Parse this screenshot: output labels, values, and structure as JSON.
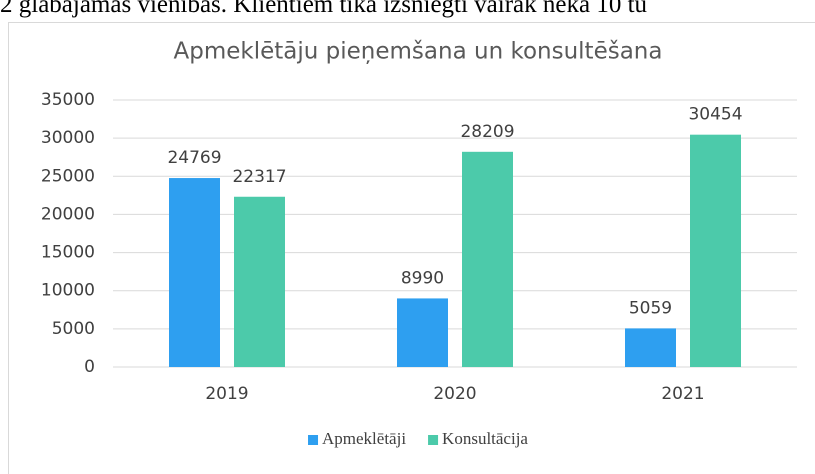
{
  "document_text": "2 glabājamās vienības. Klientiem tika izsniegti vairāk nekā 10 tū",
  "chart_data": {
    "type": "bar",
    "title": "Apmeklētāju pieņemšana un konsultēšana",
    "categories": [
      "2019",
      "2020",
      "2021"
    ],
    "series": [
      {
        "name": "Apmeklētāji",
        "color": "#2e9ff0",
        "values": [
          24769,
          8990,
          5059
        ]
      },
      {
        "name": "Konsultācija",
        "color": "#4ccaaa",
        "values": [
          22317,
          28209,
          30454
        ]
      }
    ],
    "ylim": [
      0,
      35000
    ],
    "yticks": [
      0,
      5000,
      10000,
      15000,
      20000,
      25000,
      30000,
      35000
    ],
    "grid": true,
    "legend": "bottom"
  }
}
